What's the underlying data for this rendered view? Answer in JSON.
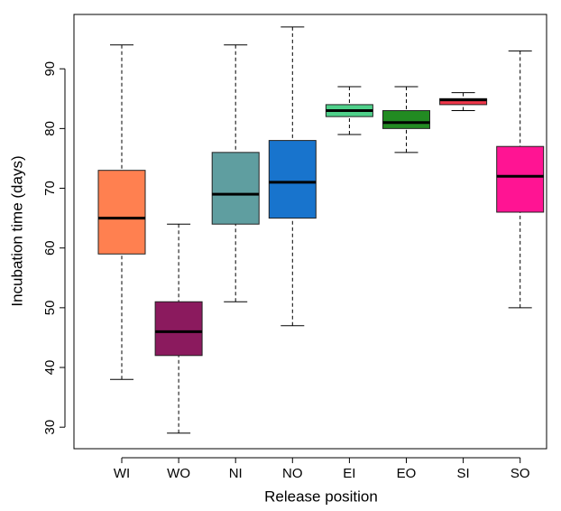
{
  "chart_data": {
    "type": "box",
    "x_label": "Release position",
    "y_label": "Incubation time (days)",
    "categories": [
      "WI",
      "WO",
      "NI",
      "NO",
      "EI",
      "EO",
      "SI",
      "SO"
    ],
    "colors": [
      "#ff8050",
      "#8b1a5e",
      "#5f9ea0",
      "#1874cd",
      "#4fd08a",
      "#228b22",
      "#f0374a",
      "#ff1493"
    ],
    "stats": [
      {
        "min": 38,
        "q1": 59,
        "median": 65,
        "q3": 73,
        "max": 94
      },
      {
        "min": 29,
        "q1": 42,
        "median": 46,
        "q3": 51,
        "max": 64
      },
      {
        "min": 51,
        "q1": 64,
        "median": 69,
        "q3": 76,
        "max": 94
      },
      {
        "min": 47,
        "q1": 65,
        "median": 71,
        "q3": 78,
        "max": 97
      },
      {
        "min": 79,
        "q1": 82,
        "median": 83,
        "q3": 84,
        "max": 87
      },
      {
        "min": 76,
        "q1": 80,
        "median": 81,
        "q3": 83,
        "max": 87
      },
      {
        "min": 83,
        "q1": 84,
        "median": 84.8,
        "q3": 85,
        "max": 86
      },
      {
        "min": 50,
        "q1": 66,
        "median": 72,
        "q3": 77,
        "max": 93
      }
    ],
    "ylim": [
      26.4,
      99.1
    ],
    "yticks": [
      30,
      40,
      50,
      60,
      70,
      80,
      90
    ]
  }
}
